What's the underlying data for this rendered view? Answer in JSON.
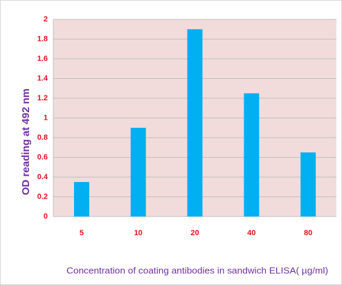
{
  "chart_data": {
    "type": "bar",
    "categories": [
      "5",
      "10",
      "20",
      "40",
      "80"
    ],
    "values": [
      0.35,
      0.9,
      1.9,
      1.25,
      0.65
    ],
    "color": "#00b0f0",
    "ylim": [
      0,
      2
    ],
    "yticks": [
      0,
      0.2,
      0.4,
      0.6,
      0.8,
      1,
      1.2,
      1.4,
      1.6,
      1.8,
      2
    ],
    "grid": true,
    "y_label": "OD reading at 492 nm",
    "x_label": "Concentration of coating antibodies in sandwich ELISA( µg/ml)"
  }
}
